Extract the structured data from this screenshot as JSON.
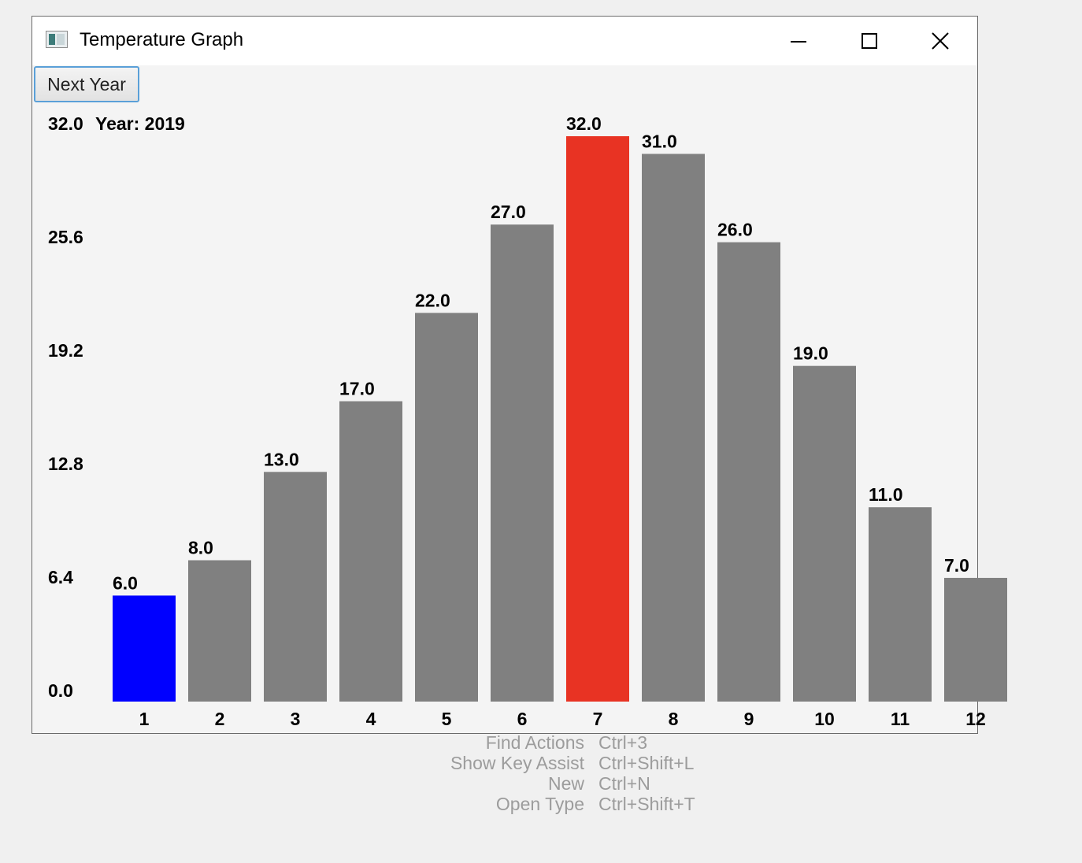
{
  "window": {
    "title": "Temperature Graph"
  },
  "controls": {
    "next_year_label": "Next Year"
  },
  "colors": {
    "bar": "#808080",
    "min_bar": "#0000ff",
    "max_bar": "#e83323"
  },
  "chart_data": {
    "type": "bar",
    "year_label": "Year: 2019",
    "categories": [
      "1",
      "2",
      "3",
      "4",
      "5",
      "6",
      "7",
      "8",
      "9",
      "10",
      "11",
      "12"
    ],
    "values": [
      6.0,
      8.0,
      13.0,
      17.0,
      22.0,
      27.0,
      32.0,
      31.0,
      26.0,
      19.0,
      11.0,
      7.0
    ],
    "value_labels": [
      "6.0",
      "8.0",
      "13.0",
      "17.0",
      "22.0",
      "27.0",
      "32.0",
      "31.0",
      "26.0",
      "19.0",
      "11.0",
      "7.0"
    ],
    "y_ticks": [
      "32.0",
      "25.6",
      "19.2",
      "12.8",
      "6.4",
      "0.0"
    ],
    "ylim": [
      0,
      32.0
    ],
    "min_index": 0,
    "max_index": 6
  },
  "shortcuts": [
    {
      "name": "Find Actions",
      "key": "Ctrl+3"
    },
    {
      "name": "Show Key Assist",
      "key": "Ctrl+Shift+L"
    },
    {
      "name": "New",
      "key": "Ctrl+N"
    },
    {
      "name": "Open Type",
      "key": "Ctrl+Shift+T"
    }
  ]
}
